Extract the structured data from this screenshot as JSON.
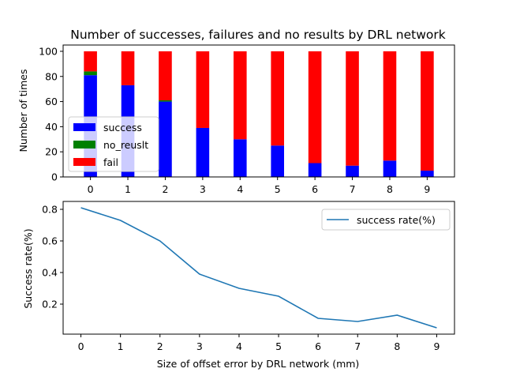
{
  "chart_data": [
    {
      "type": "bar",
      "stacked": true,
      "title": "Number of successes, failures and no results by DRL network",
      "xlabel": "",
      "ylabel": "Number of times",
      "categories": [
        "0",
        "1",
        "2",
        "3",
        "4",
        "5",
        "6",
        "7",
        "8",
        "9"
      ],
      "ylim": [
        0,
        105
      ],
      "yticks": [
        0,
        20,
        40,
        60,
        80,
        100
      ],
      "grid": false,
      "legend_position": "lower-left",
      "series": [
        {
          "name": "success",
          "color": "#0000ff",
          "values": [
            81,
            73,
            60,
            39,
            30,
            25,
            11,
            9,
            13,
            5
          ]
        },
        {
          "name": "no_reuslt",
          "color": "#008000",
          "values": [
            3,
            0,
            1,
            0,
            0,
            0,
            0,
            0,
            0,
            0
          ]
        },
        {
          "name": "fail",
          "color": "#ff0000",
          "values": [
            16,
            27,
            39,
            61,
            70,
            75,
            89,
            91,
            87,
            95
          ]
        }
      ]
    },
    {
      "type": "line",
      "title": "",
      "xlabel": "Size of offset error by DRL network (mm)",
      "ylabel": "Success rate(%)",
      "x": [
        0,
        1,
        2,
        3,
        4,
        5,
        6,
        7,
        8,
        9
      ],
      "xticks": [
        "0",
        "1",
        "2",
        "3",
        "4",
        "5",
        "6",
        "7",
        "8",
        "9"
      ],
      "ylim": [
        0.01,
        0.85
      ],
      "yticks": [
        "0.2",
        "0.4",
        "0.6",
        "0.8"
      ],
      "grid": false,
      "legend_position": "upper-right",
      "series": [
        {
          "name": "success rate(%)",
          "color": "#1f77b4",
          "values": [
            0.81,
            0.73,
            0.6,
            0.39,
            0.3,
            0.25,
            0.11,
            0.09,
            0.13,
            0.05
          ]
        }
      ]
    }
  ]
}
